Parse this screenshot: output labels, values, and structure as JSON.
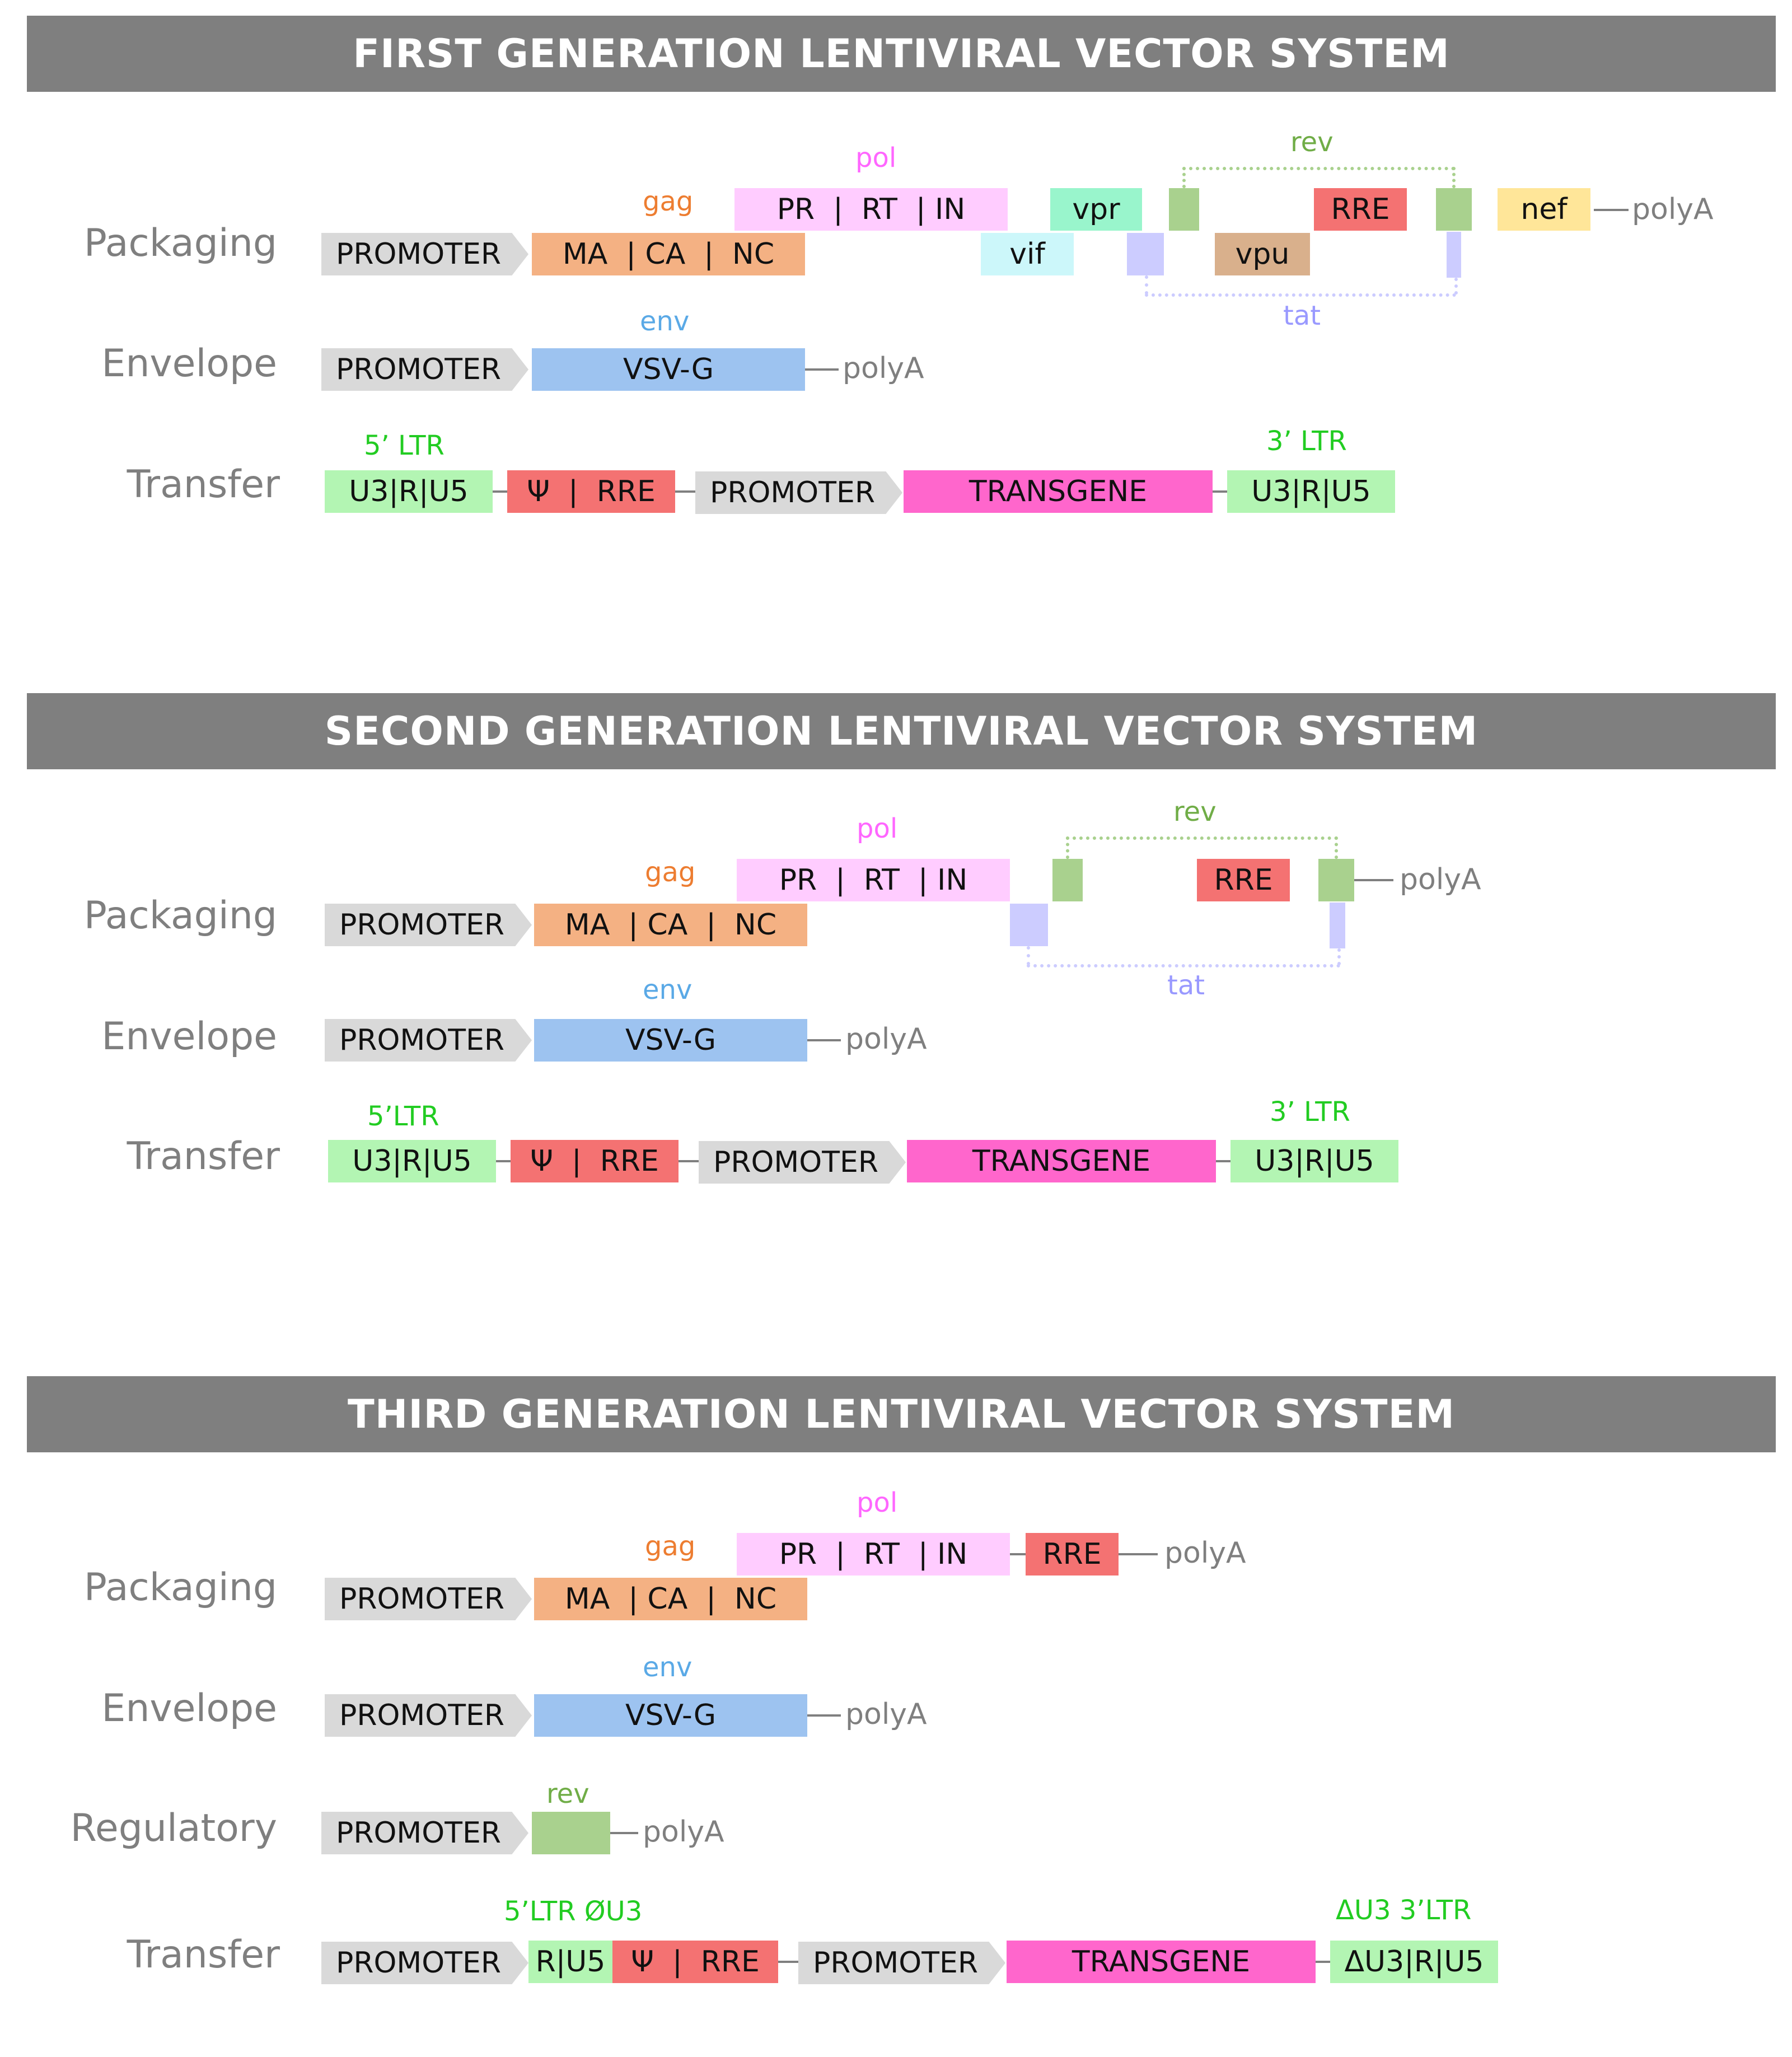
{
  "colors": {
    "banner": "#7f7f7f",
    "promoter": "#d9d9d9",
    "gag": "#f4b183",
    "pol": "#ffccff",
    "env": "#9dc3f0",
    "ltr": "#b3f5b3",
    "psi_rre": "#f47272",
    "transgene": "#ff66cc",
    "vif": "#ccf7fa",
    "vpr": "#99f5cc",
    "rev": "#a9d18e",
    "tat": "#ccccff",
    "vpu": "#d9b08c",
    "nef": "#ffe699",
    "label_gag": "#ed7d31",
    "label_pol": "#ff66ff",
    "label_env": "#5aa9e6",
    "label_rev": "#70ad47",
    "label_tat": "#9999ff",
    "label_ltr": "#22cc22"
  },
  "first": {
    "title": "FIRST GENERATION LENTIVIRAL VECTOR SYSTEM",
    "packaging": {
      "row_label": "Packaging",
      "promoter": "PROMOTER",
      "gag_label": "gag",
      "gag_box": "MA  | CA  |  NC",
      "pol_label": "pol",
      "pol_box": "PR  |  RT  | IN",
      "vif": "vif",
      "vpr": "vpr",
      "rev_label": "rev",
      "rre": "RRE",
      "vpu": "vpu",
      "tat_label": "tat",
      "nef": "nef",
      "polya": "polyA"
    },
    "envelope": {
      "row_label": "Envelope",
      "promoter": "PROMOTER",
      "env_label": "env",
      "env_box": "VSV-G",
      "polya": "polyA"
    },
    "transfer": {
      "row_label": "Transfer",
      "ltr5_label": "5’ LTR",
      "ltr5_box": "U3|R|U5",
      "psi_rre": "Ψ  |  RRE",
      "promoter": "PROMOTER",
      "transgene": "TRANSGENE",
      "ltr3_label": "3’ LTR",
      "ltr3_box": "U3|R|U5"
    }
  },
  "second": {
    "title": "SECOND GENERATION LENTIVIRAL VECTOR SYSTEM",
    "packaging": {
      "row_label": "Packaging",
      "promoter": "PROMOTER",
      "gag_label": "gag",
      "gag_box": "MA  | CA  |  NC",
      "pol_label": "pol",
      "pol_box": "PR  |  RT  | IN",
      "rev_label": "rev",
      "rre": "RRE",
      "tat_label": "tat",
      "polya": "polyA"
    },
    "envelope": {
      "row_label": "Envelope",
      "promoter": "PROMOTER",
      "env_label": "env",
      "env_box": "VSV-G",
      "polya": "polyA"
    },
    "transfer": {
      "row_label": "Transfer",
      "ltr5_label": "5’LTR",
      "ltr5_box": "U3|R|U5",
      "psi_rre": "Ψ  |  RRE",
      "promoter": "PROMOTER",
      "transgene": "TRANSGENE",
      "ltr3_label": "3’ LTR",
      "ltr3_box": "U3|R|U5"
    }
  },
  "third": {
    "title": "THIRD GENERATION LENTIVIRAL VECTOR SYSTEM",
    "packaging": {
      "row_label": "Packaging",
      "promoter": "PROMOTER",
      "gag_label": "gag",
      "gag_box": "MA  | CA  |  NC",
      "pol_label": "pol",
      "pol_box": "PR  |  RT  | IN",
      "rre": "RRE",
      "polya": "polyA"
    },
    "envelope": {
      "row_label": "Envelope",
      "promoter": "PROMOTER",
      "env_label": "env",
      "env_box": "VSV-G",
      "polya": "polyA"
    },
    "regulatory": {
      "row_label": "Regulatory",
      "promoter": "PROMOTER",
      "rev_label": "rev",
      "polya": "polyA"
    },
    "transfer": {
      "row_label": "Transfer",
      "promoter1": "PROMOTER",
      "ltr5_label": "5’LTR ØU3",
      "ltr5_box": "R|U5",
      "psi_rre": "Ψ  |  RRE",
      "promoter2": "PROMOTER",
      "transgene": "TRANSGENE",
      "ltr3_label": "ΔU3 3’LTR",
      "ltr3_box": "ΔU3|R|U5"
    }
  }
}
